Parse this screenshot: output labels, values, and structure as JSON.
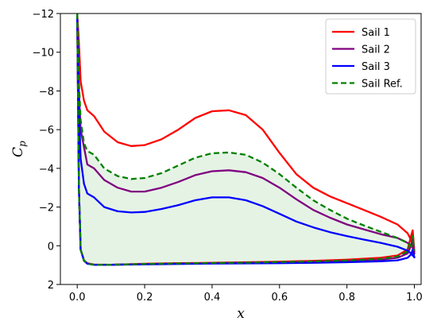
{
  "chart_data": {
    "type": "line",
    "title": "",
    "xlabel": "x",
    "ylabel": "C_p",
    "ylabel_parts": {
      "base": "C",
      "sub": "p"
    },
    "xlim": [
      -0.05,
      1.02
    ],
    "ylim": [
      2,
      -12
    ],
    "y_inverted": true,
    "xticks": [
      0.0,
      0.2,
      0.4,
      0.6,
      0.8,
      1.0
    ],
    "xtick_labels": [
      "0.0",
      "0.2",
      "0.4",
      "0.6",
      "0.8",
      "1.0"
    ],
    "yticks": [
      -12,
      -10,
      -8,
      -6,
      -4,
      -2,
      0,
      2
    ],
    "ytick_labels": [
      "−12",
      "−10",
      "−8",
      "−6",
      "−4",
      "−2",
      "0",
      "2"
    ],
    "grid": false,
    "legend": {
      "position": "top-right"
    },
    "shaded_region": {
      "between": "Sail Ref.",
      "color": "#2ca02c",
      "opacity": 0.12
    },
    "series": [
      {
        "name": "Sail 1",
        "color": "#ff0000",
        "dash": "solid",
        "upper": {
          "x": [
            0.0,
            0.005,
            0.01,
            0.02,
            0.03,
            0.05,
            0.08,
            0.12,
            0.16,
            0.2,
            0.25,
            0.3,
            0.35,
            0.4,
            0.45,
            0.5,
            0.55,
            0.6,
            0.65,
            0.7,
            0.75,
            0.8,
            0.85,
            0.9,
            0.95,
            0.98,
            0.99,
            0.995,
            1.0
          ],
          "y": [
            -12.0,
            -10.5,
            -8.5,
            -7.5,
            -7.0,
            -6.7,
            -5.9,
            -5.35,
            -5.15,
            -5.2,
            -5.5,
            -6.0,
            -6.6,
            -6.95,
            -7.0,
            -6.75,
            -6.0,
            -4.8,
            -3.7,
            -3.0,
            -2.55,
            -2.2,
            -1.85,
            -1.5,
            -1.1,
            -0.65,
            -0.3,
            0.0,
            0.3
          ]
        },
        "lower": {
          "x": [
            0.0,
            0.005,
            0.01,
            0.02,
            0.03,
            0.05,
            0.1,
            0.2,
            0.3,
            0.4,
            0.5,
            0.6,
            0.7,
            0.8,
            0.9,
            0.95,
            0.98,
            0.99,
            0.995,
            1.0
          ],
          "y": [
            -12.0,
            -3.0,
            0.2,
            0.75,
            0.9,
            0.97,
            0.98,
            0.93,
            0.9,
            0.88,
            0.85,
            0.82,
            0.78,
            0.72,
            0.62,
            0.5,
            0.2,
            -0.5,
            -0.8,
            0.3
          ]
        }
      },
      {
        "name": "Sail 2",
        "color": "#800080",
        "dash": "solid",
        "upper": {
          "x": [
            0.0,
            0.005,
            0.01,
            0.02,
            0.03,
            0.05,
            0.08,
            0.12,
            0.16,
            0.2,
            0.25,
            0.3,
            0.35,
            0.4,
            0.45,
            0.5,
            0.55,
            0.6,
            0.65,
            0.7,
            0.75,
            0.8,
            0.85,
            0.9,
            0.95,
            0.98,
            0.99,
            0.995,
            1.0
          ],
          "y": [
            -12.0,
            -8.0,
            -6.0,
            -5.1,
            -4.2,
            -4.0,
            -3.4,
            -3.0,
            -2.8,
            -2.8,
            -3.0,
            -3.3,
            -3.65,
            -3.85,
            -3.9,
            -3.8,
            -3.5,
            -3.0,
            -2.4,
            -1.85,
            -1.45,
            -1.1,
            -0.85,
            -0.6,
            -0.4,
            -0.15,
            0.0,
            0.1,
            0.4
          ]
        },
        "lower": {
          "x": [
            0.0,
            0.005,
            0.01,
            0.02,
            0.03,
            0.05,
            0.1,
            0.2,
            0.3,
            0.4,
            0.5,
            0.6,
            0.7,
            0.8,
            0.9,
            0.95,
            0.98,
            0.99,
            0.995,
            1.0
          ],
          "y": [
            -12.0,
            -3.0,
            0.2,
            0.75,
            0.92,
            0.98,
            0.98,
            0.95,
            0.92,
            0.9,
            0.88,
            0.86,
            0.83,
            0.79,
            0.72,
            0.62,
            0.4,
            0.0,
            -0.3,
            0.4
          ]
        }
      },
      {
        "name": "Sail 3",
        "color": "#0000ff",
        "dash": "solid",
        "upper": {
          "x": [
            0.0,
            0.005,
            0.01,
            0.02,
            0.03,
            0.05,
            0.08,
            0.12,
            0.16,
            0.2,
            0.25,
            0.3,
            0.35,
            0.4,
            0.45,
            0.5,
            0.55,
            0.6,
            0.65,
            0.7,
            0.75,
            0.8,
            0.85,
            0.9,
            0.95,
            0.98,
            0.99,
            0.995,
            1.0
          ],
          "y": [
            -12.0,
            -7.0,
            -4.5,
            -3.2,
            -2.7,
            -2.5,
            -2.0,
            -1.78,
            -1.72,
            -1.75,
            -1.9,
            -2.1,
            -2.35,
            -2.5,
            -2.5,
            -2.35,
            -2.05,
            -1.65,
            -1.25,
            -0.95,
            -0.7,
            -0.5,
            -0.32,
            -0.15,
            0.05,
            0.25,
            0.4,
            0.5,
            0.6
          ]
        },
        "lower": {
          "x": [
            0.0,
            0.005,
            0.01,
            0.02,
            0.03,
            0.05,
            0.1,
            0.2,
            0.3,
            0.4,
            0.5,
            0.6,
            0.7,
            0.8,
            0.9,
            0.95,
            0.98,
            0.99,
            0.995,
            1.0
          ],
          "y": [
            -12.0,
            -3.0,
            0.2,
            0.78,
            0.93,
            0.98,
            0.98,
            0.96,
            0.94,
            0.92,
            0.91,
            0.9,
            0.88,
            0.85,
            0.8,
            0.75,
            0.62,
            0.45,
            0.2,
            0.6
          ]
        }
      },
      {
        "name": "Sail Ref.",
        "color": "#008000",
        "dash": "dashed",
        "upper": {
          "x": [
            0.0,
            0.005,
            0.01,
            0.02,
            0.03,
            0.05,
            0.08,
            0.12,
            0.16,
            0.2,
            0.25,
            0.3,
            0.35,
            0.4,
            0.45,
            0.5,
            0.55,
            0.6,
            0.65,
            0.7,
            0.75,
            0.8,
            0.85,
            0.9,
            0.95,
            0.98,
            0.99,
            0.995,
            1.0
          ],
          "y": [
            -12.0,
            -8.5,
            -6.5,
            -5.3,
            -4.9,
            -4.7,
            -4.0,
            -3.6,
            -3.45,
            -3.5,
            -3.75,
            -4.15,
            -4.55,
            -4.78,
            -4.82,
            -4.7,
            -4.3,
            -3.7,
            -3.0,
            -2.35,
            -1.85,
            -1.4,
            -1.05,
            -0.72,
            -0.4,
            -0.15,
            0.0,
            0.1,
            0.25
          ]
        },
        "lower": {
          "x": [
            0.0,
            0.005,
            0.01,
            0.02,
            0.03,
            0.05,
            0.1,
            0.2,
            0.3,
            0.4,
            0.5,
            0.6,
            0.7,
            0.8,
            0.9,
            0.95,
            0.98,
            0.99,
            0.995,
            1.0
          ],
          "y": [
            -12.0,
            -3.0,
            0.2,
            0.76,
            0.92,
            0.98,
            0.98,
            0.94,
            0.91,
            0.89,
            0.87,
            0.84,
            0.81,
            0.76,
            0.68,
            0.56,
            0.3,
            -0.2,
            -0.5,
            0.25
          ]
        }
      }
    ]
  }
}
